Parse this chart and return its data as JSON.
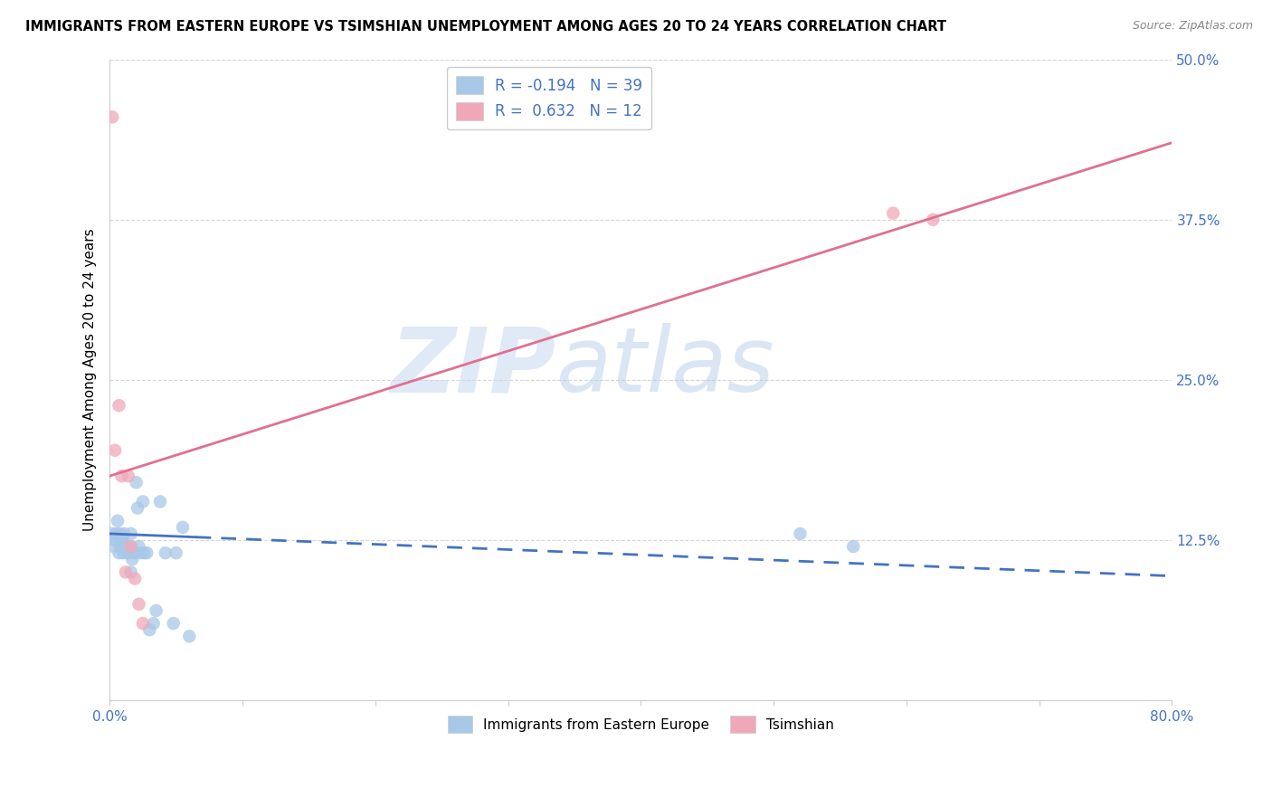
{
  "title": "IMMIGRANTS FROM EASTERN EUROPE VS TSIMSHIAN UNEMPLOYMENT AMONG AGES 20 TO 24 YEARS CORRELATION CHART",
  "source": "Source: ZipAtlas.com",
  "ylabel": "Unemployment Among Ages 20 to 24 years",
  "xlim": [
    0,
    0.8
  ],
  "ylim": [
    0,
    0.5
  ],
  "blue_R": -0.194,
  "blue_N": 39,
  "pink_R": 0.632,
  "pink_N": 12,
  "blue_label": "Immigrants from Eastern Europe",
  "pink_label": "Tsimshian",
  "blue_color": "#a8c8e8",
  "pink_color": "#f0a8b8",
  "blue_line_color": "#4472c4",
  "pink_line_color": "#e07090",
  "watermark_zip": "ZIP",
  "watermark_atlas": "atlas",
  "blue_x": [
    0.002,
    0.003,
    0.004,
    0.005,
    0.006,
    0.007,
    0.008,
    0.008,
    0.009,
    0.01,
    0.01,
    0.011,
    0.012,
    0.013,
    0.014,
    0.015,
    0.016,
    0.016,
    0.017,
    0.018,
    0.019,
    0.02,
    0.021,
    0.022,
    0.023,
    0.025,
    0.026,
    0.028,
    0.03,
    0.033,
    0.035,
    0.038,
    0.042,
    0.048,
    0.05,
    0.055,
    0.06,
    0.52,
    0.56
  ],
  "blue_y": [
    0.13,
    0.12,
    0.125,
    0.13,
    0.14,
    0.115,
    0.12,
    0.13,
    0.125,
    0.115,
    0.125,
    0.13,
    0.12,
    0.115,
    0.115,
    0.12,
    0.1,
    0.13,
    0.11,
    0.115,
    0.115,
    0.17,
    0.15,
    0.12,
    0.115,
    0.155,
    0.115,
    0.115,
    0.055,
    0.06,
    0.07,
    0.155,
    0.115,
    0.06,
    0.115,
    0.135,
    0.05,
    0.13,
    0.12
  ],
  "pink_x": [
    0.002,
    0.004,
    0.007,
    0.009,
    0.012,
    0.014,
    0.016,
    0.019,
    0.022,
    0.025,
    0.59,
    0.62
  ],
  "pink_y": [
    0.455,
    0.195,
    0.23,
    0.175,
    0.1,
    0.175,
    0.12,
    0.095,
    0.075,
    0.06,
    0.38,
    0.375
  ],
  "pink_line_x0": 0.0,
  "pink_line_y0": 0.175,
  "pink_line_x1": 0.8,
  "pink_line_y1": 0.435,
  "blue_line_x0": 0.0,
  "blue_line_y0": 0.13,
  "blue_line_x1_solid": 0.065,
  "blue_line_x1": 0.8,
  "blue_line_y1": 0.097
}
